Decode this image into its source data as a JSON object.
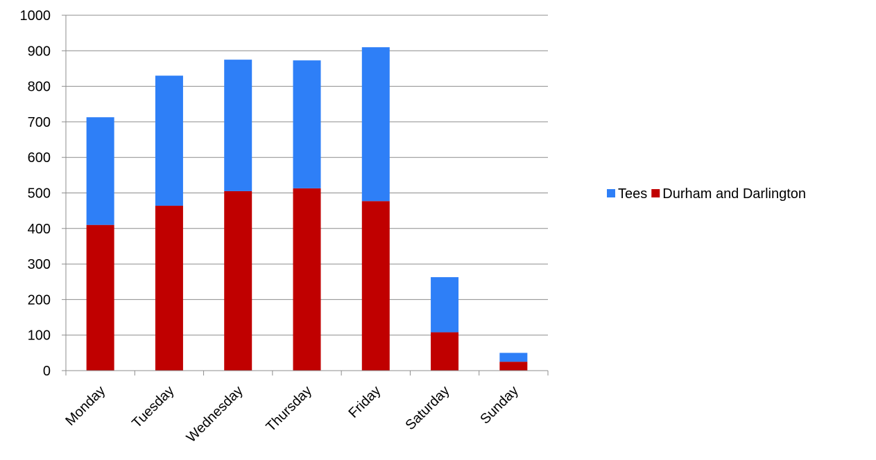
{
  "chart_data": {
    "type": "bar",
    "stacked": true,
    "categories": [
      "Monday",
      "Tuesday",
      "Wednesday",
      "Thursday",
      "Friday",
      "Saturday",
      "Sunday"
    ],
    "series": [
      {
        "name": "Durham and Darlington",
        "values": [
          410,
          464,
          505,
          513,
          477,
          108,
          25
        ],
        "color": "#c00000"
      },
      {
        "name": "Tees",
        "values": [
          303,
          366,
          370,
          360,
          433,
          155,
          25
        ],
        "color": "#2e7ff7"
      }
    ],
    "legend_order": [
      "Tees",
      "Durham and Darlington"
    ],
    "legend_position": "right",
    "ylim": [
      0,
      1000
    ],
    "y_ticks": [
      0,
      100,
      200,
      300,
      400,
      500,
      600,
      700,
      800,
      900,
      1000
    ],
    "grid": true,
    "xlabel": "",
    "ylabel": "",
    "title": ""
  }
}
